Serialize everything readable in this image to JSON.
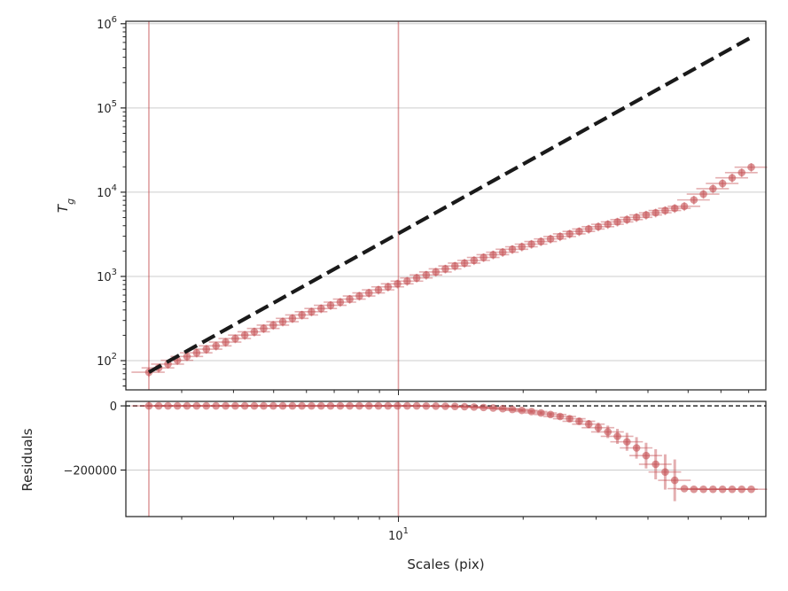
{
  "chart_data": [
    {
      "type": "scatter",
      "panel": "top",
      "yscale": "log",
      "xscale": "log",
      "ylabel": "T_g",
      "xlabel": "",
      "xlim": [
        2.2,
        77
      ],
      "ylim": [
        45,
        1070000
      ],
      "yticks": [
        {
          "value": 100,
          "base": "10",
          "exp": "2"
        },
        {
          "value": 1000,
          "base": "10",
          "exp": "3"
        },
        {
          "value": 10000,
          "base": "10",
          "exp": "4"
        },
        {
          "value": 100000,
          "base": "10",
          "exp": "5"
        },
        {
          "value": 1000000,
          "base": "10",
          "exp": "6"
        }
      ],
      "grid": "horizontal",
      "vlines": [
        2.5,
        10.0
      ],
      "series": [
        {
          "marker": "circle",
          "color": "#c44e52",
          "x": [
            2.5,
            2.64,
            2.78,
            2.93,
            3.09,
            3.26,
            3.44,
            3.63,
            3.83,
            4.04,
            4.26,
            4.49,
            4.73,
            4.99,
            5.26,
            5.55,
            5.85,
            6.17,
            6.51,
            6.86,
            7.24,
            7.63,
            8.05,
            8.49,
            8.95,
            9.44,
            9.95,
            10.5,
            11.07,
            11.67,
            12.31,
            12.98,
            13.69,
            14.44,
            15.22,
            16.05,
            16.93,
            17.85,
            18.83,
            19.85,
            20.94,
            22.08,
            23.28,
            24.55,
            25.89,
            27.3,
            28.79,
            30.36,
            32.01,
            33.76,
            35.6,
            37.54,
            39.59,
            41.75,
            44.02,
            46.42,
            48.96,
            51.63,
            54.44,
            57.41,
            60.54,
            63.85,
            67.33,
            71.0
          ],
          "y": [
            73,
            82,
            91,
            101,
            112,
            124,
            137,
            150,
            166,
            183,
            201,
            220,
            241,
            264,
            290,
            318,
            349,
            381,
            416,
            454,
            495,
            538,
            586,
            637,
            693,
            752,
            817,
            880,
            960,
            1040,
            1130,
            1230,
            1330,
            1440,
            1550,
            1680,
            1810,
            1940,
            2100,
            2250,
            2420,
            2600,
            2790,
            2980,
            3200,
            3420,
            3660,
            3900,
            4160,
            4440,
            4730,
            5030,
            5370,
            5700,
            6060,
            6440,
            6800,
            8100,
            9500,
            11000,
            12700,
            14800,
            17100,
            19800
          ],
          "xerr": [
            [
              2.27,
              2.73
            ],
            [
              2.4,
              2.88
            ],
            [
              2.53,
              3.04
            ],
            [
              2.67,
              3.2
            ],
            [
              2.82,
              3.38
            ],
            [
              2.97,
              3.56
            ],
            [
              3.13,
              3.76
            ],
            [
              3.3,
              3.96
            ],
            [
              3.49,
              4.18
            ],
            [
              3.68,
              4.41
            ],
            [
              3.88,
              4.65
            ],
            [
              4.09,
              4.9
            ],
            [
              4.31,
              5.17
            ],
            [
              4.55,
              5.45
            ],
            [
              4.8,
              5.75
            ],
            [
              5.06,
              6.07
            ],
            [
              5.33,
              6.4
            ],
            [
              5.62,
              6.74
            ],
            [
              5.93,
              7.11
            ],
            [
              6.25,
              7.5
            ],
            [
              6.6,
              7.91
            ],
            [
              6.95,
              8.34
            ],
            [
              7.34,
              8.8
            ],
            [
              7.74,
              9.28
            ],
            [
              8.16,
              9.78
            ],
            [
              8.6,
              10.32
            ],
            [
              9.07,
              10.88
            ],
            [
              9.57,
              11.48
            ],
            [
              10.09,
              12.1
            ],
            [
              10.64,
              12.76
            ],
            [
              11.22,
              13.45
            ],
            [
              11.83,
              14.19
            ],
            [
              12.48,
              14.96
            ],
            [
              13.16,
              15.78
            ],
            [
              13.87,
              16.64
            ],
            [
              14.63,
              17.54
            ],
            [
              15.43,
              18.5
            ],
            [
              16.27,
              19.51
            ],
            [
              17.16,
              20.57
            ],
            [
              18.09,
              21.69
            ],
            [
              19.08,
              22.88
            ],
            [
              20.12,
              24.13
            ],
            [
              21.22,
              25.44
            ],
            [
              22.37,
              26.83
            ],
            [
              23.59,
              28.29
            ],
            [
              24.88,
              29.83
            ],
            [
              26.24,
              31.46
            ],
            [
              27.67,
              33.18
            ],
            [
              29.17,
              34.98
            ],
            [
              30.77,
              36.89
            ],
            [
              32.44,
              38.9
            ],
            [
              34.21,
              41.02
            ],
            [
              36.08,
              43.26
            ],
            [
              38.05,
              45.62
            ],
            [
              40.12,
              48.1
            ],
            [
              42.31,
              50.73
            ],
            [
              44.62,
              53.49
            ],
            [
              47.05,
              56.41
            ],
            [
              49.61,
              59.48
            ],
            [
              52.32,
              62.73
            ],
            [
              55.17,
              66.15
            ],
            [
              58.19,
              69.77
            ],
            [
              61.36,
              73.57
            ],
            [
              64.71,
              77.59
            ]
          ],
          "yerr_frac": 0.12
        },
        {
          "name": "",
          "type": "line",
          "style": "dashed",
          "color": "#1a1a1a",
          "x": [
            2.5,
            71.0
          ],
          "y": [
            73,
            690000
          ]
        }
      ]
    },
    {
      "type": "scatter",
      "panel": "bottom",
      "xscale": "log",
      "xlabel": "Scales (pix)",
      "ylabel": "Residuals",
      "xlim": [
        2.2,
        77
      ],
      "ylim": [
        -345000,
        14000
      ],
      "yticks": [
        {
          "value": 0,
          "label": "0"
        },
        {
          "value": -200000,
          "label": "−200000"
        }
      ],
      "xticks": [
        {
          "value": 10,
          "base": "10",
          "exp": "1"
        }
      ],
      "grid": "horizontal",
      "hline": 0,
      "vlines": [
        2.5,
        10.0
      ],
      "series": [
        {
          "marker": "circle",
          "color": "#c44e52",
          "x": [
            2.5,
            2.64,
            2.78,
            2.93,
            3.09,
            3.26,
            3.44,
            3.63,
            3.83,
            4.04,
            4.26,
            4.49,
            4.73,
            4.99,
            5.26,
            5.55,
            5.85,
            6.17,
            6.51,
            6.86,
            7.24,
            7.63,
            8.05,
            8.49,
            8.95,
            9.44,
            9.95,
            10.5,
            11.07,
            11.67,
            12.31,
            12.98,
            13.69,
            14.44,
            15.22,
            16.05,
            16.93,
            17.85,
            18.83,
            19.85,
            20.94,
            22.08,
            23.28,
            24.55,
            25.89,
            27.3,
            28.79,
            30.36,
            32.01,
            33.76,
            35.6,
            37.54,
            39.59,
            41.75,
            44.02,
            46.42,
            48.96,
            51.63,
            54.44,
            57.41,
            60.54,
            63.85,
            67.33,
            71.0
          ],
          "y": [
            0,
            0,
            0,
            0,
            0,
            0,
            0,
            0,
            0,
            0,
            0,
            0,
            0,
            0,
            0,
            0,
            0,
            0,
            0,
            0,
            0,
            0,
            0,
            0,
            0,
            0,
            0,
            0,
            0,
            -500,
            -800,
            -1200,
            -1800,
            -2600,
            -3600,
            -5000,
            -6500,
            -8500,
            -11000,
            -14000,
            -17500,
            -22000,
            -27000,
            -33000,
            -40000,
            -48000,
            -57000,
            -68000,
            -81000,
            -95000,
            -112000,
            -131000,
            -155000,
            -182000,
            -206000,
            -232000,
            -258000,
            -260000,
            -260000,
            -260000,
            -260000,
            -260000,
            -260000,
            -260000
          ],
          "yerr": [
            0,
            0,
            0,
            0,
            0,
            0,
            0,
            0,
            0,
            0,
            0,
            0,
            0,
            0,
            0,
            0,
            0,
            0,
            0,
            0,
            0,
            0,
            0,
            0,
            0,
            0,
            0,
            0,
            0,
            0,
            0,
            0,
            0,
            0,
            0,
            0,
            500,
            900,
            1500,
            2200,
            3000,
            4000,
            5200,
            6600,
            8400,
            10500,
            13000,
            16000,
            19500,
            23500,
            28000,
            33500,
            40000,
            47000,
            55000,
            65000,
            0,
            0,
            0,
            0,
            0,
            0,
            0,
            0
          ]
        }
      ]
    }
  ]
}
